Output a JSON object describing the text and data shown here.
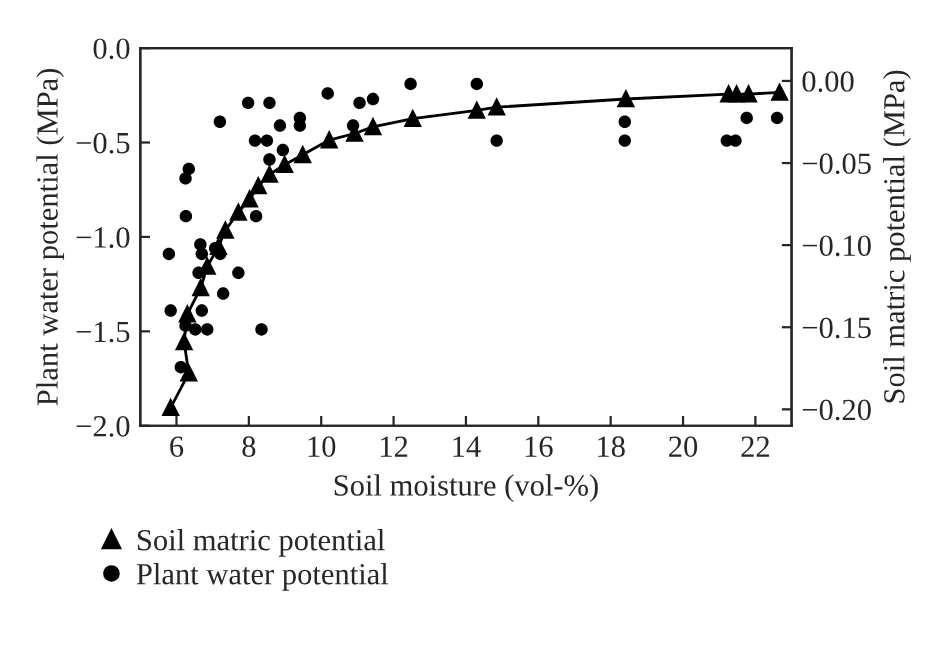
{
  "chart_data": {
    "type": "scatter",
    "xlabel": "Soil moisture (vol-%)",
    "ylabel": "Plant water potential (MPa)",
    "y2label": "Soil matric potential (MPa)",
    "xlim": [
      5,
      23
    ],
    "xticks": [
      6,
      8,
      10,
      12,
      14,
      16,
      18,
      20,
      22
    ],
    "ylim": [
      -2.0,
      0.0
    ],
    "yticks": [
      {
        "value": -2.0,
        "label": "−2.0"
      },
      {
        "value": -1.5,
        "label": "−1.5"
      },
      {
        "value": -1.0,
        "label": "−1.0"
      },
      {
        "value": -0.5,
        "label": "−0.5"
      },
      {
        "value": 0.0,
        "label": "0.0"
      }
    ],
    "y2lim": [
      -0.21,
      0.02
    ],
    "y2ticks": [
      {
        "value": -0.2,
        "label": "−0.20"
      },
      {
        "value": -0.15,
        "label": "−0.15"
      },
      {
        "value": -0.1,
        "label": "−0.10"
      },
      {
        "value": -0.05,
        "label": "−0.05"
      },
      {
        "value": 0.0,
        "label": "0.00"
      }
    ],
    "legend": "bottom",
    "grid": false,
    "series": [
      {
        "name": "Soil matric potential",
        "type": "line",
        "axis": "y2",
        "marker": "triangle",
        "color": "#000000",
        "x": [
          5.84,
          6.34,
          6.21,
          6.3,
          6.67,
          6.85,
          7.16,
          7.35,
          7.71,
          8.02,
          8.26,
          8.57,
          8.99,
          9.49,
          10.22,
          10.92,
          11.43,
          12.53,
          14.3,
          14.85,
          18.42,
          21.26,
          21.48,
          21.81,
          22.67
        ],
        "values": [
          -0.199,
          -0.178,
          -0.159,
          -0.142,
          -0.126,
          -0.113,
          -0.101,
          -0.091,
          -0.08,
          -0.072,
          -0.064,
          -0.057,
          -0.051,
          -0.045,
          -0.036,
          -0.032,
          -0.028,
          -0.023,
          -0.018,
          -0.016,
          -0.011,
          -0.008,
          -0.008,
          -0.008,
          -0.007
        ]
      },
      {
        "name": "Plant water potential",
        "marker": "circle",
        "color": "#000000",
        "x": [
          5.79,
          5.84,
          6.12,
          6.25,
          6.34,
          6.26,
          6.25,
          6.52,
          6.85,
          6.7,
          6.66,
          6.7,
          6.61,
          7.07,
          7.21,
          7.29,
          7.2,
          7.71,
          7.98,
          8.17,
          8.2,
          8.35,
          8.57,
          8.5,
          8.57,
          8.86,
          8.94,
          9.41,
          9.41,
          10.18,
          10.88,
          11.06,
          11.43,
          12.47,
          14.3,
          14.85,
          18.39,
          18.39,
          21.21,
          21.45,
          21.76,
          22.6
        ],
        "values": [
          -1.09,
          -1.39,
          -1.69,
          -0.69,
          -0.64,
          -0.89,
          -1.47,
          -1.49,
          -1.49,
          -1.39,
          -1.04,
          -1.09,
          -1.19,
          -1.06,
          -1.09,
          -1.3,
          -0.39,
          -1.19,
          -0.29,
          -0.49,
          -0.89,
          -1.49,
          -0.29,
          -0.49,
          -0.59,
          -0.41,
          -0.54,
          -0.37,
          -0.41,
          -0.24,
          -0.41,
          -0.29,
          -0.27,
          -0.19,
          -0.19,
          -0.49,
          -0.39,
          -0.49,
          -0.49,
          -0.49,
          -0.37,
          -0.37
        ]
      }
    ]
  }
}
